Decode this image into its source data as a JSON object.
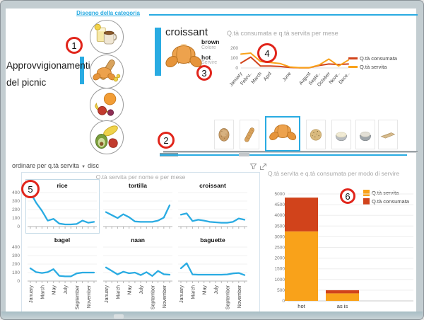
{
  "colors": {
    "accent": "#29ABE2",
    "orange": "#F9A21A",
    "red": "#D1431B",
    "title_gray": "#A8A8A8"
  },
  "category_panel": {
    "link_label": "Disegno della categoria",
    "title_line1": "Approvvigionamenti",
    "title_line2": "del picnic",
    "category_icons": [
      "drinks",
      "bread",
      "fruit",
      "vegetables"
    ]
  },
  "detail_card": {
    "title": "croissant",
    "attributes": [
      {
        "value": "brown",
        "label": "Colore"
      },
      {
        "value": "hot",
        "label": "Servire"
      }
    ]
  },
  "strip": {
    "items": [
      "bagel",
      "baguette",
      "croissant",
      "naan",
      "rice",
      "couscous",
      "tortilla"
    ],
    "selected_index": 2
  },
  "sort_bar": {
    "label": "ordinare per q.tà servita",
    "caret": "▼",
    "mode": "disc",
    "icons": [
      "filter-icon",
      "focus-mode-icon"
    ]
  },
  "annotations": [
    {
      "label": "1"
    },
    {
      "label": "2"
    },
    {
      "label": "3"
    },
    {
      "label": "4"
    },
    {
      "label": "5"
    },
    {
      "label": "6"
    }
  ],
  "chart_data": [
    {
      "type": "line",
      "title": "Q.tà consumata e q.tà servita per mese",
      "x": [
        "January",
        "February",
        "March",
        "April",
        "May",
        "June",
        "July",
        "August",
        "September",
        "October",
        "November",
        "December"
      ],
      "x_tick_labels": [
        "January",
        "Febru..",
        "March",
        "April",
        "June",
        "August",
        "Septe..",
        "October",
        "Nove..",
        "Dece.."
      ],
      "x_tick_indices": [
        0,
        1,
        2,
        3,
        5,
        7,
        8,
        9,
        10,
        11
      ],
      "ylim": [
        0,
        200
      ],
      "yticks": [
        0,
        100,
        200
      ],
      "legend_position": "right",
      "series": [
        {
          "name": "Q.tà consumata",
          "color": "#D1431B",
          "values": [
            50,
            110,
            20,
            20,
            15,
            5,
            2,
            2,
            25,
            40,
            35,
            40
          ]
        },
        {
          "name": "Q.tà servita",
          "color": "#F9A21A",
          "values": [
            140,
            150,
            65,
            55,
            45,
            10,
            3,
            3,
            30,
            90,
            20,
            80
          ]
        }
      ]
    },
    {
      "type": "line-small-multiples",
      "title": "Q.tà servita per nome e per mese",
      "x": [
        "January",
        "February",
        "March",
        "April",
        "May",
        "June",
        "July",
        "August",
        "September",
        "October",
        "November",
        "December"
      ],
      "x_tick_labels": [
        "January",
        "March",
        "May",
        "July",
        "September",
        "November"
      ],
      "x_tick_indices": [
        0,
        2,
        4,
        6,
        8,
        10
      ],
      "ylim": [
        0,
        400
      ],
      "yticks": [
        0,
        100,
        200,
        300,
        400
      ],
      "color": "#29ABE2",
      "panels": [
        {
          "name": "rice",
          "values": [
            400,
            280,
            185,
            70,
            90,
            35,
            25,
            25,
            30,
            70,
            45,
            55
          ]
        },
        {
          "name": "tortilla",
          "values": [
            170,
            135,
            100,
            145,
            110,
            60,
            55,
            55,
            55,
            70,
            105,
            250
          ]
        },
        {
          "name": "croissant",
          "values": [
            140,
            155,
            65,
            80,
            70,
            55,
            50,
            45,
            45,
            55,
            95,
            80
          ]
        },
        {
          "name": "bagel",
          "values": [
            150,
            105,
            95,
            105,
            140,
            62,
            55,
            55,
            90,
            100,
            100,
            100
          ]
        },
        {
          "name": "naan",
          "values": [
            160,
            120,
            78,
            110,
            92,
            100,
            70,
            105,
            60,
            120,
            80,
            75
          ]
        },
        {
          "name": "baguette",
          "values": [
            150,
            210,
            78,
            75,
            75,
            75,
            75,
            75,
            78,
            90,
            95,
            70
          ]
        }
      ]
    },
    {
      "type": "stacked-bar",
      "title": "Q.tà servita e q.tà consumata per modo di servire",
      "categories": [
        "hot",
        "as is"
      ],
      "ylim": [
        0,
        5000
      ],
      "ytick_step": 500,
      "legend_position": "top-right",
      "series": [
        {
          "name": "Q.tà servita",
          "color": "#F9A21A",
          "values": [
            3250,
            350
          ]
        },
        {
          "name": "Q.tà consumata",
          "color": "#D1431B",
          "values": [
            1580,
            150
          ]
        }
      ]
    }
  ]
}
